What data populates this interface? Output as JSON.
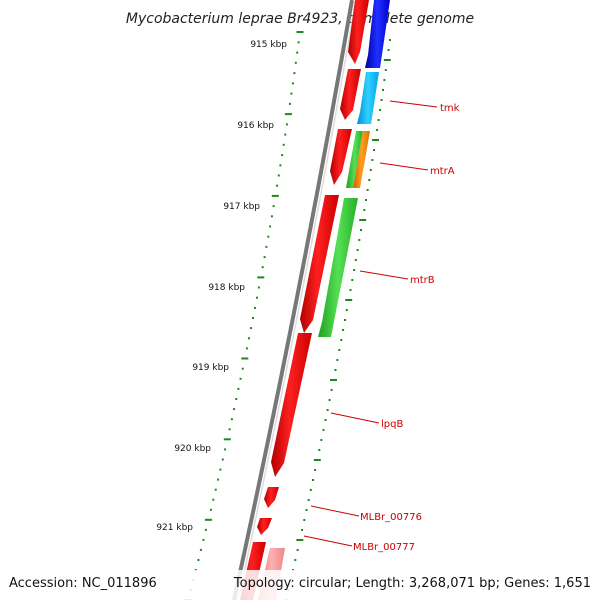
{
  "title": "Mycobacterium leprae Br4923, complete genome",
  "footer": {
    "accession": "Accession: NC_011896",
    "summary": "Topology: circular; Length: 3,268,071 bp; Genes: 1,651"
  },
  "ruler": {
    "unit": "kbp",
    "ticks": [
      "915 kbp",
      "916 kbp",
      "917 kbp",
      "918 kbp",
      "919 kbp",
      "920 kbp",
      "921 kbp"
    ]
  },
  "gene_labels": [
    {
      "id": "tmk",
      "text": "tmk"
    },
    {
      "id": "mtrA",
      "text": "mtrA"
    },
    {
      "id": "mtrB",
      "text": "mtrB"
    },
    {
      "id": "lpqB",
      "text": "lpqB"
    },
    {
      "id": "MLBr_00776",
      "text": "MLBr_00776"
    },
    {
      "id": "MLBr_00777",
      "text": "MLBr_00777"
    }
  ],
  "colors": {
    "forward_strand": "#ff0000",
    "reverse_blue": "#0000ee",
    "reverse_cyan": "#00bfff",
    "reverse_green": "#33cc33",
    "reverse_orange": "#ff8800",
    "reverse_pink": "#f08080",
    "ruler_dots": "#1a8a1a",
    "backbone": "#777777",
    "label": "#cc0000"
  }
}
